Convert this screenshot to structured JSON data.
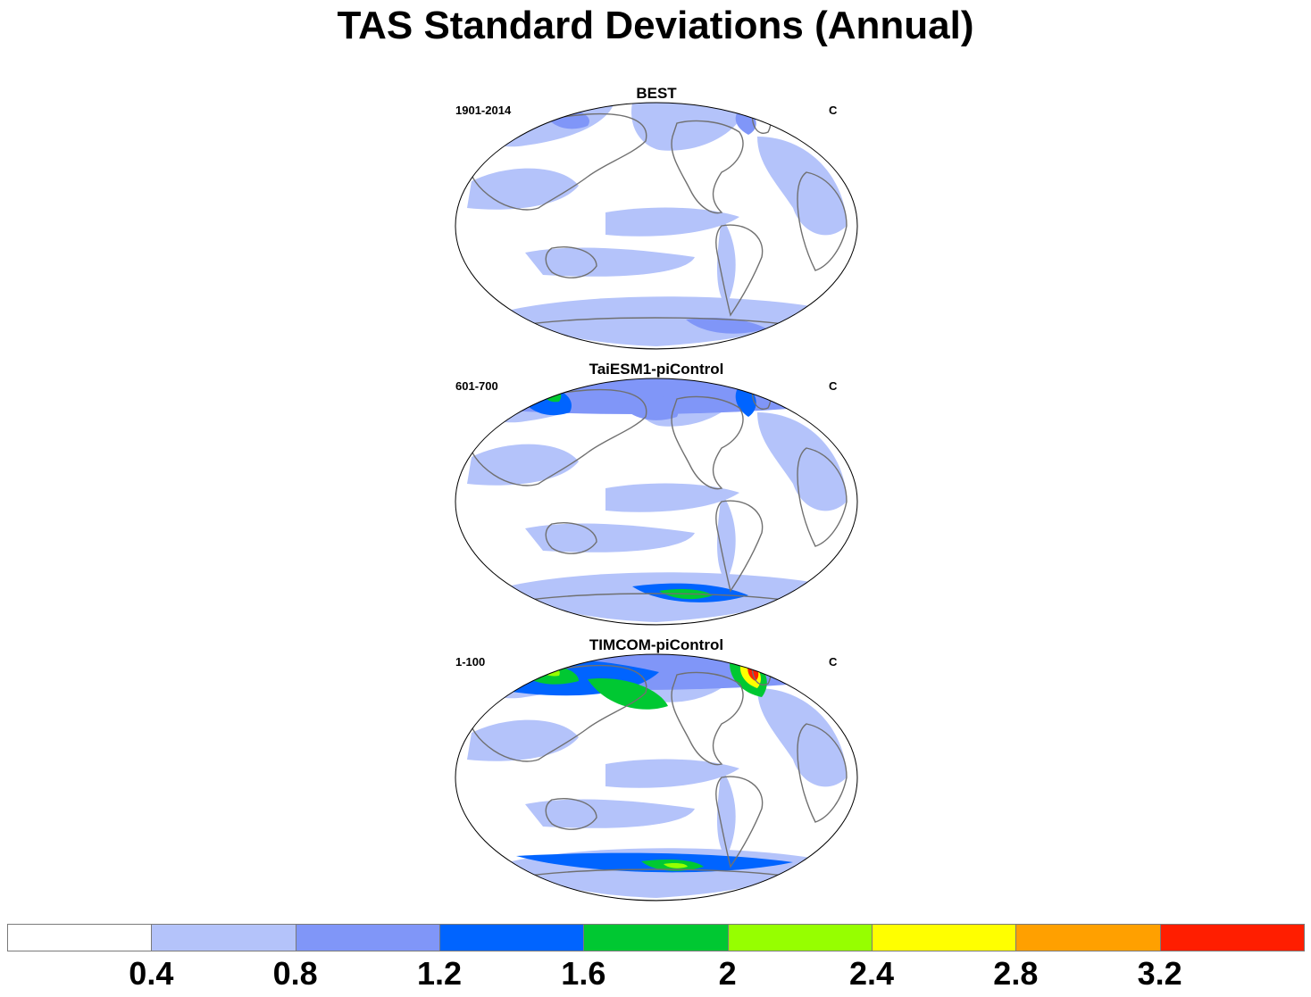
{
  "figure": {
    "title": "TAS Standard Deviations (Annual)"
  },
  "panels": [
    {
      "title": "BEST",
      "period": "1901-2014",
      "units": "C",
      "level": 0
    },
    {
      "title": "TaiESM1-piControl",
      "period": "601-700",
      "units": "C",
      "level": 1
    },
    {
      "title": "TIMCOM-piControl",
      "period": "1-100",
      "units": "C",
      "level": 2
    }
  ],
  "colorbar": {
    "levels": [
      "0.4",
      "0.8",
      "1.2",
      "1.6",
      "2",
      "2.4",
      "2.8",
      "3.2"
    ],
    "colors": [
      "#ffffff",
      "#b4c3fa",
      "#8096f8",
      "#0064ff",
      "#00c832",
      "#96ff00",
      "#ffff00",
      "#ffa000",
      "#ff1e00"
    ]
  }
}
